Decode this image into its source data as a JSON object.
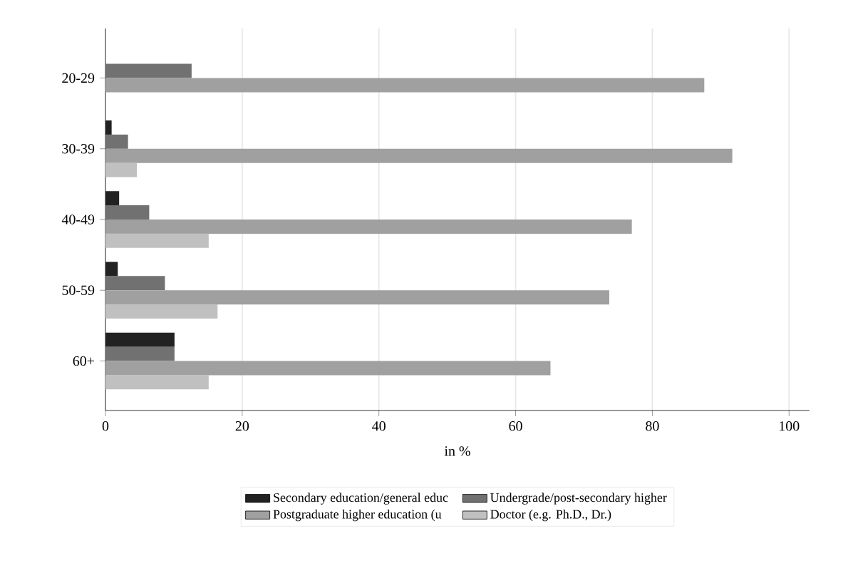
{
  "chart_data": {
    "type": "bar",
    "orientation": "horizontal",
    "xlabel": "in %",
    "categories": [
      "20-29",
      "30-39",
      "40-49",
      "50-59",
      "60+"
    ],
    "series": [
      {
        "name": "Secondary education/general educ",
        "color": "#222222",
        "values": [
          null,
          0.9,
          2.0,
          1.8,
          10.1
        ]
      },
      {
        "name": "Undergrade/post-secondary higher",
        "color": "#717171",
        "values": [
          12.6,
          3.3,
          6.4,
          8.7,
          10.1
        ]
      },
      {
        "name": "Postgraduate higher education (u",
        "color": "#a0a0a0",
        "values": [
          87.6,
          91.7,
          77.0,
          73.7,
          65.1
        ]
      },
      {
        "name": "Doctor (e.g. Ph.D., Dr.)",
        "color": "#c0c0c0",
        "values": [
          null,
          4.6,
          15.1,
          16.4,
          15.1
        ]
      }
    ],
    "xlim": [
      0,
      103
    ],
    "xticks": [
      0,
      20,
      40,
      60,
      80,
      100
    ],
    "grid": "x",
    "legend": "bottom"
  }
}
